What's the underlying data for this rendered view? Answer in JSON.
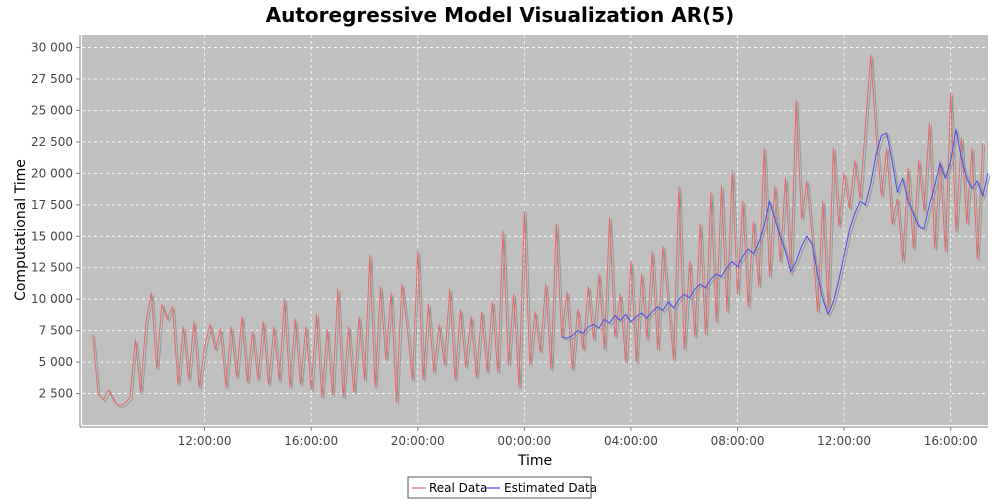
{
  "chart_data": {
    "type": "line",
    "title": "Autoregressive Model Visualization AR(5)",
    "xlabel": "Time",
    "ylabel": "Computational Time",
    "x_tick_labels": [
      "12:00:00",
      "16:00:00",
      "20:00:00",
      "00:00:00",
      "04:00:00",
      "08:00:00",
      "12:00:00",
      "16:00:00"
    ],
    "y_ticks": [
      2500,
      5000,
      7500,
      10000,
      12500,
      15000,
      17500,
      20000,
      22500,
      25000,
      27500,
      30000
    ],
    "y_tick_labels": [
      "2 500",
      "5 000",
      "7 500",
      "10 000",
      "12 500",
      "15 000",
      "17 500",
      "20 000",
      "22 500",
      "25 000",
      "27 500",
      "30 000"
    ],
    "x_range_hours": [
      7.4,
      41.4
    ],
    "ylim": [
      0,
      31000
    ],
    "grid": true,
    "legend_position": "bottom-center",
    "background_color": "#c0c0c0",
    "series": [
      {
        "name": "Real Data",
        "color": "#e36b6b",
        "points": [
          [
            7.8,
            7200
          ],
          [
            8.0,
            2500
          ],
          [
            8.2,
            2000
          ],
          [
            8.4,
            2800
          ],
          [
            8.6,
            1900
          ],
          [
            8.8,
            1500
          ],
          [
            9.0,
            1700
          ],
          [
            9.2,
            2200
          ],
          [
            9.4,
            6800
          ],
          [
            9.6,
            2600
          ],
          [
            9.8,
            8200
          ],
          [
            10.0,
            10500
          ],
          [
            10.2,
            4500
          ],
          [
            10.4,
            9600
          ],
          [
            10.6,
            8400
          ],
          [
            10.8,
            9400
          ],
          [
            11.0,
            3200
          ],
          [
            11.2,
            7800
          ],
          [
            11.4,
            3600
          ],
          [
            11.6,
            8200
          ],
          [
            11.8,
            3000
          ],
          [
            12.0,
            6200
          ],
          [
            12.2,
            8000
          ],
          [
            12.4,
            6000
          ],
          [
            12.6,
            7600
          ],
          [
            12.8,
            3000
          ],
          [
            13.0,
            7800
          ],
          [
            13.2,
            3800
          ],
          [
            13.4,
            8600
          ],
          [
            13.6,
            3400
          ],
          [
            13.8,
            7400
          ],
          [
            14.0,
            3600
          ],
          [
            14.2,
            8200
          ],
          [
            14.4,
            3200
          ],
          [
            14.6,
            7800
          ],
          [
            14.8,
            3500
          ],
          [
            15.0,
            10000
          ],
          [
            15.2,
            3000
          ],
          [
            15.4,
            8400
          ],
          [
            15.6,
            3200
          ],
          [
            15.8,
            7800
          ],
          [
            16.0,
            2800
          ],
          [
            16.2,
            8800
          ],
          [
            16.4,
            2200
          ],
          [
            16.6,
            7600
          ],
          [
            16.8,
            2400
          ],
          [
            17.0,
            10800
          ],
          [
            17.2,
            2200
          ],
          [
            17.4,
            7800
          ],
          [
            17.6,
            2600
          ],
          [
            17.8,
            8600
          ],
          [
            18.0,
            3600
          ],
          [
            18.2,
            13500
          ],
          [
            18.4,
            3000
          ],
          [
            18.6,
            11000
          ],
          [
            18.8,
            5200
          ],
          [
            19.0,
            10500
          ],
          [
            19.2,
            1800
          ],
          [
            19.4,
            11200
          ],
          [
            19.6,
            7800
          ],
          [
            19.8,
            3600
          ],
          [
            20.0,
            13800
          ],
          [
            20.2,
            3600
          ],
          [
            20.4,
            9600
          ],
          [
            20.6,
            4200
          ],
          [
            20.8,
            8000
          ],
          [
            21.0,
            4800
          ],
          [
            21.2,
            10800
          ],
          [
            21.4,
            3600
          ],
          [
            21.6,
            9200
          ],
          [
            21.8,
            4600
          ],
          [
            22.0,
            8600
          ],
          [
            22.2,
            3800
          ],
          [
            22.4,
            9000
          ],
          [
            22.6,
            4200
          ],
          [
            22.8,
            9800
          ],
          [
            23.0,
            4200
          ],
          [
            23.2,
            15400
          ],
          [
            23.4,
            4800
          ],
          [
            23.6,
            10400
          ],
          [
            23.8,
            3000
          ],
          [
            24.0,
            17000
          ],
          [
            24.2,
            4800
          ],
          [
            24.4,
            9000
          ],
          [
            24.6,
            5800
          ],
          [
            24.8,
            11200
          ],
          [
            25.0,
            4400
          ],
          [
            25.2,
            16000
          ],
          [
            25.4,
            7000
          ],
          [
            25.6,
            10600
          ],
          [
            25.8,
            4400
          ],
          [
            26.0,
            9200
          ],
          [
            26.2,
            6000
          ],
          [
            26.4,
            11000
          ],
          [
            26.6,
            6800
          ],
          [
            26.8,
            12000
          ],
          [
            27.0,
            6000
          ],
          [
            27.2,
            16500
          ],
          [
            27.4,
            7000
          ],
          [
            27.6,
            10400
          ],
          [
            27.8,
            5000
          ],
          [
            28.0,
            13000
          ],
          [
            28.2,
            5000
          ],
          [
            28.4,
            12000
          ],
          [
            28.6,
            6800
          ],
          [
            28.8,
            13800
          ],
          [
            29.0,
            6000
          ],
          [
            29.2,
            14200
          ],
          [
            29.6,
            5200
          ],
          [
            29.8,
            19000
          ],
          [
            30.0,
            6000
          ],
          [
            30.2,
            13000
          ],
          [
            30.4,
            7000
          ],
          [
            30.6,
            16000
          ],
          [
            30.8,
            7200
          ],
          [
            31.0,
            18500
          ],
          [
            31.2,
            8200
          ],
          [
            31.4,
            19000
          ],
          [
            31.6,
            9000
          ],
          [
            31.8,
            20200
          ],
          [
            32.0,
            10400
          ],
          [
            32.2,
            17800
          ],
          [
            32.4,
            9400
          ],
          [
            32.6,
            16200
          ],
          [
            32.8,
            11000
          ],
          [
            33.0,
            22000
          ],
          [
            33.2,
            11800
          ],
          [
            33.4,
            19000
          ],
          [
            33.6,
            13000
          ],
          [
            33.8,
            19600
          ],
          [
            34.0,
            12000
          ],
          [
            34.2,
            25800
          ],
          [
            34.4,
            16400
          ],
          [
            34.6,
            19400
          ],
          [
            34.8,
            15000
          ],
          [
            35.0,
            9000
          ],
          [
            35.2,
            17800
          ],
          [
            35.4,
            9200
          ],
          [
            35.6,
            22000
          ],
          [
            35.8,
            15800
          ],
          [
            36.0,
            20000
          ],
          [
            36.2,
            17200
          ],
          [
            36.4,
            21000
          ],
          [
            36.6,
            18000
          ],
          [
            36.8,
            23800
          ],
          [
            37.0,
            29400
          ],
          [
            37.2,
            23000
          ],
          [
            37.4,
            18200
          ],
          [
            37.6,
            22000
          ],
          [
            37.8,
            16000
          ],
          [
            38.0,
            18000
          ],
          [
            38.2,
            13000
          ],
          [
            38.4,
            20400
          ],
          [
            38.6,
            14000
          ],
          [
            38.8,
            21000
          ],
          [
            39.0,
            17000
          ],
          [
            39.2,
            24000
          ],
          [
            39.4,
            14000
          ],
          [
            39.6,
            21000
          ],
          [
            39.8,
            13800
          ],
          [
            40.0,
            26400
          ],
          [
            40.2,
            15400
          ],
          [
            40.4,
            22800
          ],
          [
            40.6,
            16000
          ],
          [
            40.8,
            22000
          ],
          [
            41.0,
            13200
          ],
          [
            41.2,
            22400
          ]
        ]
      },
      {
        "name": "Estimated Data",
        "color": "#4a4af0",
        "points": [
          [
            25.4,
            7000
          ],
          [
            25.6,
            6900
          ],
          [
            25.8,
            7100
          ],
          [
            26.0,
            7500
          ],
          [
            26.2,
            7300
          ],
          [
            26.4,
            7800
          ],
          [
            26.6,
            8000
          ],
          [
            26.8,
            7700
          ],
          [
            27.0,
            8400
          ],
          [
            27.2,
            8100
          ],
          [
            27.4,
            8700
          ],
          [
            27.6,
            8300
          ],
          [
            27.8,
            8800
          ],
          [
            28.0,
            8200
          ],
          [
            28.2,
            8600
          ],
          [
            28.4,
            8900
          ],
          [
            28.6,
            8500
          ],
          [
            28.8,
            9000
          ],
          [
            29.0,
            9400
          ],
          [
            29.2,
            9100
          ],
          [
            29.4,
            9800
          ],
          [
            29.6,
            9300
          ],
          [
            29.8,
            10000
          ],
          [
            30.0,
            10400
          ],
          [
            30.2,
            10100
          ],
          [
            30.4,
            10800
          ],
          [
            30.6,
            11200
          ],
          [
            30.8,
            10900
          ],
          [
            31.0,
            11600
          ],
          [
            31.2,
            12000
          ],
          [
            31.4,
            11800
          ],
          [
            31.6,
            12500
          ],
          [
            31.8,
            13000
          ],
          [
            32.0,
            12600
          ],
          [
            32.2,
            13400
          ],
          [
            32.4,
            14000
          ],
          [
            32.6,
            13600
          ],
          [
            32.8,
            14500
          ],
          [
            33.0,
            15800
          ],
          [
            33.2,
            17800
          ],
          [
            33.4,
            16400
          ],
          [
            33.6,
            15000
          ],
          [
            33.8,
            13800
          ],
          [
            34.0,
            12200
          ],
          [
            34.2,
            13000
          ],
          [
            34.4,
            14200
          ],
          [
            34.6,
            15000
          ],
          [
            34.8,
            14400
          ],
          [
            35.0,
            12000
          ],
          [
            35.2,
            10000
          ],
          [
            35.4,
            8800
          ],
          [
            35.6,
            9800
          ],
          [
            35.8,
            11500
          ],
          [
            36.0,
            13500
          ],
          [
            36.2,
            15500
          ],
          [
            36.4,
            16800
          ],
          [
            36.6,
            17800
          ],
          [
            36.8,
            17500
          ],
          [
            37.0,
            19200
          ],
          [
            37.2,
            21500
          ],
          [
            37.4,
            23000
          ],
          [
            37.6,
            23200
          ],
          [
            37.8,
            21000
          ],
          [
            38.0,
            18500
          ],
          [
            38.2,
            19600
          ],
          [
            38.4,
            17800
          ],
          [
            38.6,
            16800
          ],
          [
            38.8,
            15800
          ],
          [
            39.0,
            15600
          ],
          [
            39.2,
            17500
          ],
          [
            39.4,
            19000
          ],
          [
            39.6,
            20800
          ],
          [
            39.8,
            19600
          ],
          [
            40.0,
            21000
          ],
          [
            40.2,
            23500
          ],
          [
            40.4,
            21200
          ],
          [
            40.6,
            19600
          ],
          [
            40.8,
            18800
          ],
          [
            41.0,
            19400
          ],
          [
            41.2,
            18200
          ],
          [
            41.4,
            20000
          ]
        ]
      }
    ]
  }
}
